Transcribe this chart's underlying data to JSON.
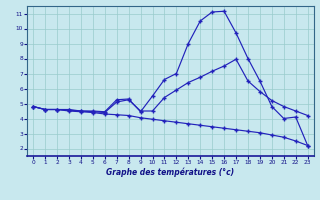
{
  "title": "Graphe des températures (°c)",
  "bg_color": "#c8e8ee",
  "line_color": "#2222bb",
  "grid_color": "#99cccc",
  "xlim": [
    -0.5,
    23.5
  ],
  "ylim": [
    1.5,
    11.5
  ],
  "xticks": [
    0,
    1,
    2,
    3,
    4,
    5,
    6,
    7,
    8,
    9,
    10,
    11,
    12,
    13,
    14,
    15,
    16,
    17,
    18,
    19,
    20,
    21,
    22,
    23
  ],
  "yticks": [
    2,
    3,
    4,
    5,
    6,
    7,
    8,
    9,
    10,
    11
  ],
  "line1_x": [
    0,
    1,
    2,
    3,
    4,
    5,
    6,
    7,
    8,
    9,
    10,
    11,
    12,
    13,
    14,
    15,
    16,
    17,
    18,
    19,
    20,
    21,
    22,
    23
  ],
  "line1_y": [
    4.8,
    4.6,
    4.6,
    4.6,
    4.5,
    4.5,
    4.45,
    5.25,
    5.3,
    4.45,
    5.5,
    6.6,
    7.0,
    9.0,
    10.5,
    11.1,
    11.15,
    9.7,
    8.0,
    6.5,
    4.8,
    4.0,
    4.1,
    2.2
  ],
  "line2_x": [
    0,
    1,
    2,
    3,
    4,
    5,
    6,
    7,
    8,
    9,
    10,
    11,
    12,
    13,
    14,
    15,
    16,
    17,
    18,
    19,
    20,
    21,
    22,
    23
  ],
  "line2_y": [
    4.8,
    4.6,
    4.6,
    4.55,
    4.5,
    4.45,
    4.4,
    5.1,
    5.25,
    4.5,
    4.5,
    5.4,
    5.9,
    6.4,
    6.75,
    7.15,
    7.5,
    7.95,
    6.5,
    5.8,
    5.2,
    4.8,
    4.5,
    4.2
  ],
  "line3_x": [
    0,
    1,
    2,
    3,
    4,
    5,
    6,
    7,
    8,
    9,
    10,
    11,
    12,
    13,
    14,
    15,
    16,
    17,
    18,
    19,
    20,
    21,
    22,
    23
  ],
  "line3_y": [
    4.8,
    4.6,
    4.6,
    4.5,
    4.45,
    4.4,
    4.3,
    4.25,
    4.2,
    4.05,
    3.95,
    3.85,
    3.75,
    3.65,
    3.55,
    3.45,
    3.35,
    3.25,
    3.15,
    3.05,
    2.9,
    2.75,
    2.5,
    2.2
  ]
}
